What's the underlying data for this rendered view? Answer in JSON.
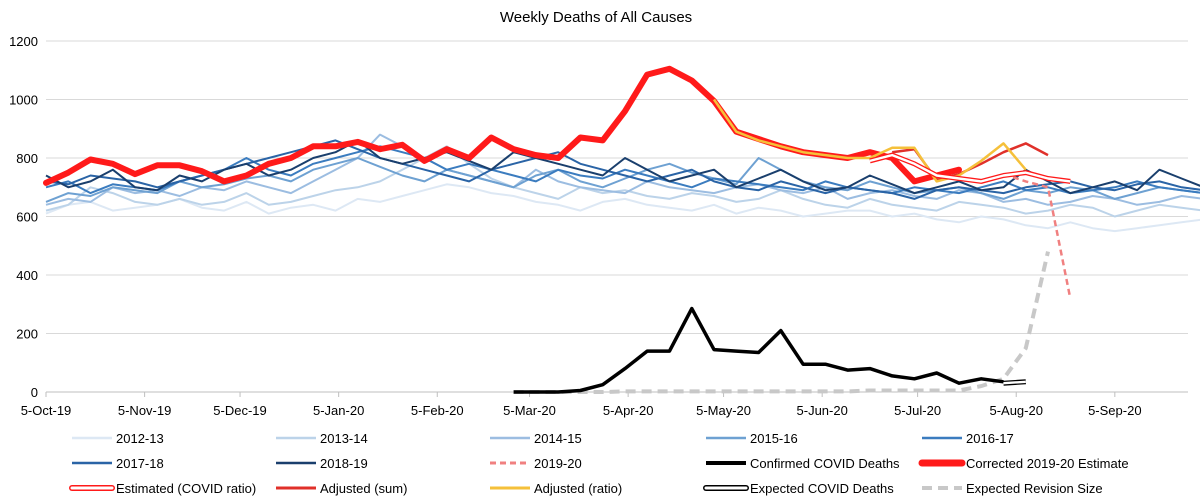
{
  "chart_data": {
    "type": "line",
    "title": "Weekly Deaths of All Causes",
    "xlabel": "",
    "ylabel": "",
    "ylim": [
      0,
      1200
    ],
    "yticks": [
      0,
      200,
      400,
      600,
      800,
      1000,
      1200
    ],
    "grid": true,
    "legend_position": "bottom",
    "x_domain": [
      "2019-10-05",
      "2020-09-28"
    ],
    "x_ticks": [
      {
        "date": "2019-10-05",
        "label": "5-Oct-19"
      },
      {
        "date": "2019-11-05",
        "label": "5-Nov-19"
      },
      {
        "date": "2019-12-05",
        "label": "5-Dec-19"
      },
      {
        "date": "2020-01-05",
        "label": "5-Jan-20"
      },
      {
        "date": "2020-02-05",
        "label": "5-Feb-20"
      },
      {
        "date": "2020-03-05",
        "label": "5-Mar-20"
      },
      {
        "date": "2020-04-05",
        "label": "5-Apr-20"
      },
      {
        "date": "2020-05-05",
        "label": "5-May-20"
      },
      {
        "date": "2020-06-05",
        "label": "5-Jun-20"
      },
      {
        "date": "2020-07-05",
        "label": "5-Jul-20"
      },
      {
        "date": "2020-08-05",
        "label": "5-Aug-20"
      },
      {
        "date": "2020-09-05",
        "label": "5-Sep-20"
      }
    ],
    "week_start": "2019-10-05",
    "series": [
      {
        "name": "2012-13",
        "color": "#dde8f4",
        "style": "thin",
        "start_week": 0,
        "values": [
          610,
          640,
          650,
          620,
          630,
          640,
          660,
          630,
          620,
          650,
          610,
          630,
          640,
          620,
          660,
          650,
          670,
          690,
          710,
          700,
          680,
          670,
          650,
          640,
          620,
          650,
          660,
          640,
          630,
          620,
          640,
          610,
          630,
          620,
          600,
          610,
          620,
          620,
          600,
          610,
          590,
          580,
          600,
          590,
          570,
          560,
          580,
          560,
          550,
          560,
          570,
          580,
          590,
          600,
          610,
          620
        ]
      },
      {
        "name": "2013-14",
        "color": "#bcd3e9",
        "style": "thin",
        "start_week": 0,
        "values": [
          620,
          640,
          700,
          680,
          650,
          640,
          660,
          640,
          650,
          680,
          640,
          650,
          670,
          690,
          700,
          720,
          760,
          800,
          840,
          780,
          730,
          700,
          680,
          660,
          700,
          680,
          690,
          670,
          660,
          680,
          670,
          650,
          660,
          690,
          660,
          640,
          630,
          660,
          640,
          630,
          620,
          650,
          640,
          630,
          610,
          620,
          640,
          630,
          600,
          620,
          640,
          630,
          620,
          610,
          640,
          630
        ]
      },
      {
        "name": "2014-15",
        "color": "#9cbde1",
        "style": "thin",
        "start_week": 0,
        "values": [
          640,
          660,
          650,
          700,
          680,
          690,
          670,
          700,
          690,
          720,
          700,
          680,
          720,
          760,
          800,
          880,
          840,
          800,
          760,
          740,
          720,
          700,
          760,
          720,
          700,
          690,
          680,
          720,
          700,
          690,
          680,
          700,
          710,
          690,
          680,
          700,
          660,
          680,
          690,
          670,
          660,
          690,
          680,
          650,
          660,
          640,
          650,
          670,
          660,
          640,
          650,
          670,
          660,
          650,
          640,
          660
        ]
      },
      {
        "name": "2015-16",
        "color": "#6ea1d2",
        "style": "thin",
        "start_week": 0,
        "values": [
          650,
          680,
          670,
          700,
          690,
          680,
          720,
          700,
          710,
          730,
          740,
          720,
          760,
          780,
          800,
          770,
          740,
          720,
          760,
          740,
          720,
          700,
          740,
          760,
          720,
          700,
          730,
          760,
          780,
          750,
          730,
          710,
          800,
          760,
          720,
          700,
          690,
          720,
          700,
          680,
          690,
          700,
          680,
          660,
          690,
          680,
          700,
          690,
          660,
          680,
          700,
          690,
          680,
          660,
          700,
          690
        ]
      },
      {
        "name": "2016-17",
        "color": "#3b7cbf",
        "style": "thin",
        "start_week": 0,
        "values": [
          700,
          720,
          680,
          710,
          700,
          690,
          720,
          740,
          760,
          800,
          760,
          740,
          780,
          800,
          820,
          840,
          820,
          800,
          760,
          780,
          760,
          740,
          720,
          760,
          740,
          730,
          760,
          740,
          720,
          700,
          730,
          720,
          710,
          700,
          690,
          720,
          700,
          690,
          680,
          700,
          690,
          680,
          700,
          720,
          690,
          700,
          680,
          690,
          700,
          720,
          700,
          690,
          680,
          700,
          690,
          680
        ]
      },
      {
        "name": "2017-18",
        "color": "#2a64a6",
        "style": "thin",
        "start_week": 0,
        "values": [
          720,
          710,
          740,
          730,
          720,
          700,
          720,
          740,
          760,
          780,
          800,
          820,
          840,
          860,
          830,
          800,
          780,
          760,
          740,
          720,
          760,
          780,
          800,
          820,
          780,
          760,
          740,
          720,
          740,
          760,
          720,
          700,
          690,
          720,
          700,
          680,
          700,
          690,
          680,
          660,
          690,
          700,
          690,
          680,
          700,
          710,
          720,
          700,
          690,
          710,
          720,
          700,
          690,
          710,
          700,
          690
        ]
      },
      {
        "name": "2018-19",
        "color": "#1a3f6d",
        "style": "thin",
        "start_week": 0,
        "values": [
          740,
          700,
          720,
          760,
          700,
          690,
          740,
          720,
          760,
          780,
          740,
          760,
          800,
          820,
          860,
          800,
          780,
          800,
          820,
          790,
          760,
          820,
          800,
          780,
          760,
          740,
          800,
          760,
          720,
          740,
          760,
          700,
          730,
          760,
          720,
          690,
          700,
          740,
          710,
          680,
          700,
          720,
          690,
          700,
          760,
          720,
          680,
          700,
          720,
          690,
          760,
          730,
          700,
          740,
          720,
          700
        ]
      },
      {
        "name": "2019-20",
        "color": "#f08080",
        "style": "dashed",
        "start_week": 43,
        "values": [
          745,
          720,
          700,
          320
        ]
      },
      {
        "name": "Confirmed COVID Deaths",
        "color": "#000000",
        "style": "black",
        "start_week": 21,
        "values": [
          0,
          0,
          0,
          5,
          25,
          80,
          140,
          140,
          285,
          145,
          140,
          135,
          210,
          95,
          95,
          75,
          80,
          55,
          45,
          65,
          30,
          45,
          35
        ]
      },
      {
        "name": "Corrected 2019-20 Estimate",
        "color": "#ff1a1a",
        "style": "thick",
        "start_week": 0,
        "values": [
          715,
          750,
          795,
          780,
          745,
          775,
          775,
          755,
          720,
          740,
          780,
          800,
          840,
          840,
          855,
          830,
          845,
          790,
          830,
          800,
          870,
          830,
          810,
          800,
          870,
          860,
          960,
          1085,
          1105,
          1065,
          995,
          890,
          865,
          840,
          820,
          810,
          800,
          820,
          800,
          720,
          740,
          760
        ]
      },
      {
        "name": "Estimated (COVID ratio)",
        "color": "#ff1a1a",
        "style": "hollow",
        "start_week": 37,
        "values": [
          790,
          810,
          780,
          740,
          730,
          720,
          740,
          750,
          730,
          720
        ]
      },
      {
        "name": "Adjusted (sum)",
        "color": "#e0302a",
        "style": "medium",
        "start_week": 38,
        "values": [
          820,
          830,
          725,
          745,
          780,
          820,
          850,
          810
        ]
      },
      {
        "name": "Adjusted (ratio)",
        "color": "#f5c03a",
        "style": "medium",
        "start_week": 30,
        "values": [
          1000,
          890,
          860,
          840,
          820,
          810,
          800,
          800,
          835,
          835,
          720,
          740,
          790,
          850,
          760
        ]
      },
      {
        "name": "Expected COVID Deaths",
        "color": "#000000",
        "style": "hollow",
        "start_week": 43,
        "values": [
          30,
          35
        ]
      },
      {
        "name": "Expected Revision Size",
        "color": "#c8c8c8",
        "style": "greydash",
        "start_week": 21,
        "values": [
          0,
          0,
          0,
          0,
          0,
          2,
          2,
          2,
          2,
          2,
          2,
          2,
          2,
          2,
          2,
          2,
          5,
          5,
          5,
          5,
          5,
          20,
          45,
          150,
          480
        ]
      }
    ],
    "legend": [
      {
        "name": "2012-13",
        "style": "thin",
        "color": "#dde8f4"
      },
      {
        "name": "2013-14",
        "style": "thin",
        "color": "#bcd3e9"
      },
      {
        "name": "2014-15",
        "style": "thin",
        "color": "#9cbde1"
      },
      {
        "name": "2015-16",
        "style": "thin",
        "color": "#6ea1d2"
      },
      {
        "name": "2016-17",
        "style": "thin",
        "color": "#3b7cbf"
      },
      {
        "name": "2017-18",
        "style": "thin",
        "color": "#2a64a6"
      },
      {
        "name": "2018-19",
        "style": "thin",
        "color": "#1a3f6d"
      },
      {
        "name": "2019-20",
        "style": "dashed",
        "color": "#f08080"
      },
      {
        "name": "Confirmed COVID Deaths",
        "style": "black",
        "color": "#000000"
      },
      {
        "name": "Corrected 2019-20 Estimate",
        "style": "thick",
        "color": "#ff1a1a"
      },
      {
        "name": "Estimated (COVID ratio)",
        "style": "hollow",
        "color": "#ff1a1a"
      },
      {
        "name": "Adjusted (sum)",
        "style": "medium",
        "color": "#e0302a"
      },
      {
        "name": "Adjusted (ratio)",
        "style": "medium",
        "color": "#f5c03a"
      },
      {
        "name": "Expected COVID Deaths",
        "style": "hollow",
        "color": "#000000"
      },
      {
        "name": "Expected Revision Size",
        "style": "greydash",
        "color": "#c8c8c8"
      }
    ]
  }
}
